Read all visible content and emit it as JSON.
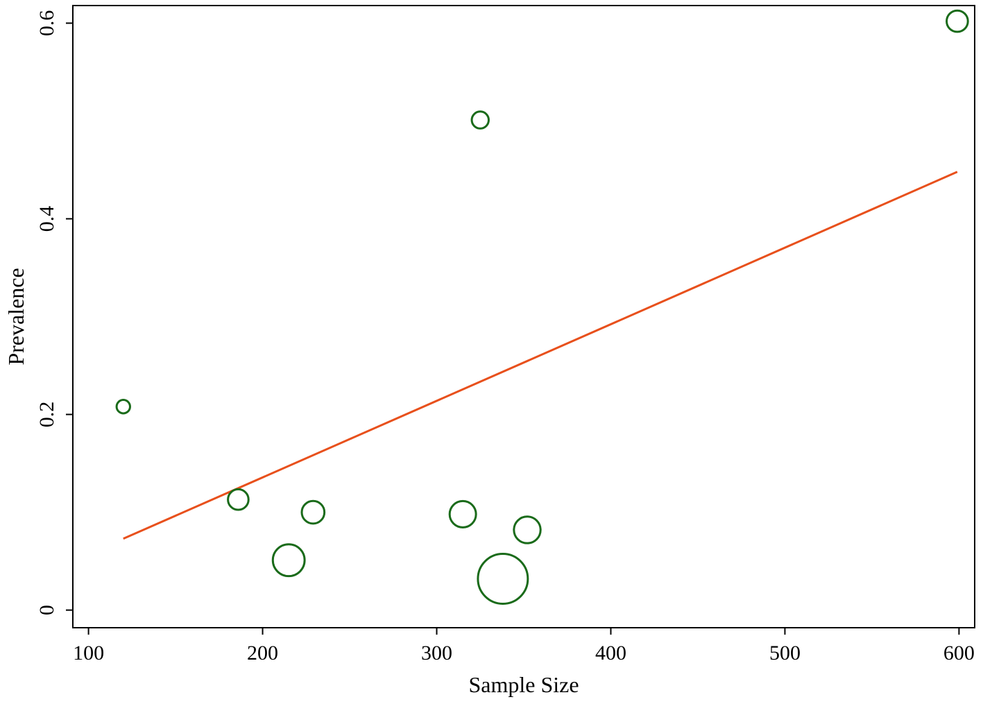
{
  "chart_data": {
    "type": "scatter",
    "title": "",
    "xlabel": "Sample Size",
    "ylabel": "Prevalence",
    "xlim": [
      91,
      609
    ],
    "ylim": [
      -0.018,
      0.618
    ],
    "x_ticks": [
      100,
      200,
      300,
      400,
      500,
      600
    ],
    "y_ticks": [
      0,
      0.2,
      0.4,
      0.6
    ],
    "x_tick_labels": [
      "100",
      "200",
      "300",
      "400",
      "500",
      "600"
    ],
    "y_tick_labels": [
      "0",
      "0.2",
      "0.4",
      "0.6"
    ],
    "grid": false,
    "legend": "none",
    "series": [
      {
        "type": "bubble",
        "color": "#1a6b1a",
        "points": [
          {
            "x": 120,
            "y": 0.208,
            "weight": 0.12
          },
          {
            "x": 186,
            "y": 0.113,
            "weight": 0.28
          },
          {
            "x": 215,
            "y": 0.051,
            "weight": 0.67
          },
          {
            "x": 229,
            "y": 0.1,
            "weight": 0.34
          },
          {
            "x": 315,
            "y": 0.098,
            "weight": 0.46
          },
          {
            "x": 325,
            "y": 0.501,
            "weight": 0.19
          },
          {
            "x": 338,
            "y": 0.032,
            "weight": 1.65
          },
          {
            "x": 352,
            "y": 0.082,
            "weight": 0.47
          },
          {
            "x": 599,
            "y": 0.602,
            "weight": 0.3
          }
        ]
      },
      {
        "type": "line",
        "color": "#e8501c",
        "x": [
          120,
          599
        ],
        "y": [
          0.073,
          0.448
        ]
      }
    ]
  }
}
